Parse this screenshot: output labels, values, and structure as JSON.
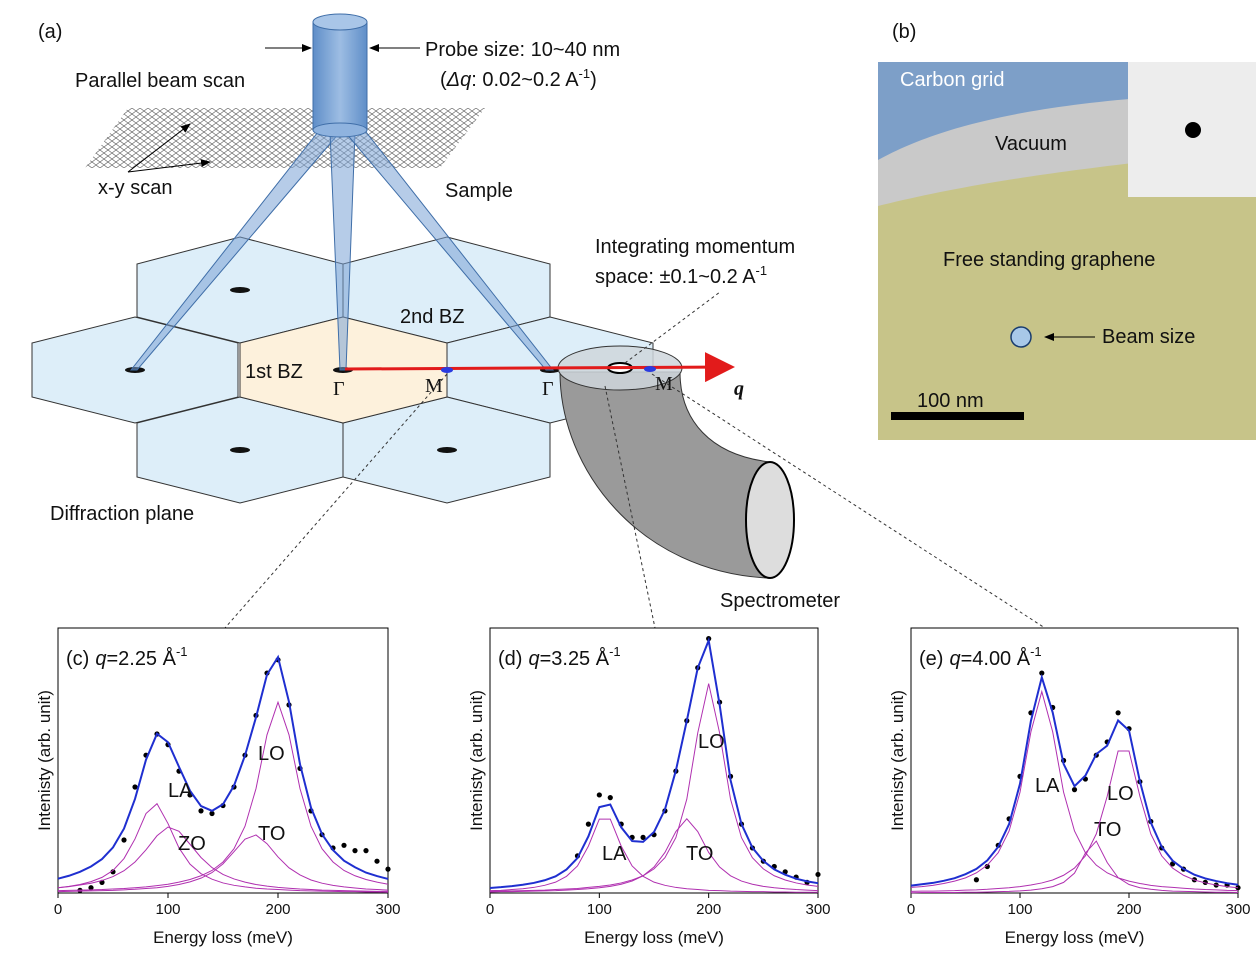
{
  "panel_a": {
    "label": "(a)",
    "probe": "Probe size: 10~40 nm",
    "dq_parts": [
      "(",
      "Δq",
      ": 0.02~0.2 A",
      "-1",
      ")"
    ],
    "parallel_beam_scan": "Parallel beam scan",
    "xy_scan": "x-y scan",
    "sample": "Sample",
    "integrating_line1": "Integrating momentum",
    "integrating_line2": "space: ±0.1~0.2 A",
    "integrating_exp": "-1",
    "second_bz": "2nd BZ",
    "first_bz": "1st BZ",
    "points": [
      "Γ",
      "M",
      "Γ",
      "M"
    ],
    "q": "q",
    "diffraction_plane": "Diffraction plane",
    "spectrometer": "Spectrometer"
  },
  "panel_b": {
    "label": "(b)",
    "carbon_grid": "Carbon grid",
    "vacuum": "Vacuum",
    "graphene": "Free standing graphene",
    "beam_size": "Beam size",
    "scale": "100 nm"
  },
  "chart_data": [
    {
      "type": "line",
      "title": {
        "label": "(c)",
        "symbol": "q",
        "value": "=2.25 Å",
        "exp": "-1"
      },
      "x_label": "Energy loss (meV)",
      "y_label": "Intenisty (arb. unit)",
      "xlim": [
        0,
        300
      ],
      "xticks": [
        0,
        100,
        200,
        300
      ],
      "ylim": [
        0,
        1
      ],
      "x": [
        0,
        10,
        20,
        30,
        40,
        50,
        60,
        70,
        80,
        90,
        100,
        110,
        120,
        130,
        140,
        150,
        160,
        170,
        180,
        190,
        200,
        210,
        220,
        230,
        240,
        250,
        260,
        270,
        280,
        290,
        300
      ],
      "series": [
        {
          "mode": "markers",
          "color": "#000000",
          "values": [
            null,
            null,
            0.01,
            0.02,
            0.04,
            0.08,
            0.2,
            0.4,
            0.52,
            0.6,
            0.56,
            0.46,
            0.37,
            0.31,
            0.3,
            0.33,
            0.4,
            0.52,
            0.67,
            0.83,
            0.88,
            0.71,
            0.47,
            0.31,
            0.22,
            0.17,
            0.18,
            0.16,
            0.16,
            0.12,
            0.09
          ]
        },
        {
          "mode": "line",
          "color": "#1f2fd0",
          "values": [
            0.054,
            0.065,
            0.08,
            0.1,
            0.128,
            0.172,
            0.243,
            0.355,
            0.503,
            0.601,
            0.569,
            0.476,
            0.386,
            0.328,
            0.31,
            0.335,
            0.405,
            0.519,
            0.663,
            0.824,
            0.89,
            0.721,
            0.486,
            0.322,
            0.222,
            0.162,
            0.122,
            0.097,
            0.077,
            0.064,
            0.053
          ]
        },
        {
          "name": "LA",
          "mode": "line",
          "color": "#b030b0",
          "values": [
            0.02,
            0.025,
            0.032,
            0.043,
            0.059,
            0.085,
            0.13,
            0.204,
            0.3,
            0.337,
            0.262,
            0.17,
            0.109,
            0.073,
            0.052,
            0.038,
            0.029,
            0.023,
            0.018,
            0.015,
            0.013,
            0.011,
            0.009,
            0.008,
            0.007,
            0.006,
            0.005,
            0.005,
            0.004,
            0.004,
            0.003
          ]
        },
        {
          "name": "ZO",
          "mode": "line",
          "color": "#b030b0",
          "values": [
            0.02,
            0.024,
            0.03,
            0.037,
            0.047,
            0.062,
            0.084,
            0.117,
            0.163,
            0.216,
            0.249,
            0.233,
            0.184,
            0.134,
            0.096,
            0.07,
            0.053,
            0.041,
            0.032,
            0.026,
            0.021,
            0.018,
            0.015,
            0.013,
            0.011,
            0.01,
            0.009,
            0.008,
            0.007,
            0.006,
            0.006
          ]
        },
        {
          "name": "TO",
          "mode": "line",
          "color": "#b030b0",
          "values": [
            0.005,
            0.006,
            0.007,
            0.008,
            0.009,
            0.01,
            0.012,
            0.014,
            0.017,
            0.02,
            0.025,
            0.032,
            0.042,
            0.056,
            0.077,
            0.11,
            0.156,
            0.203,
            0.219,
            0.186,
            0.136,
            0.095,
            0.068,
            0.049,
            0.037,
            0.029,
            0.023,
            0.019,
            0.015,
            0.013,
            0.011
          ]
        },
        {
          "name": "LO",
          "mode": "line",
          "color": "#b030b0",
          "values": [
            0.009,
            0.01,
            0.011,
            0.012,
            0.013,
            0.015,
            0.017,
            0.02,
            0.023,
            0.028,
            0.033,
            0.041,
            0.051,
            0.065,
            0.085,
            0.117,
            0.167,
            0.252,
            0.394,
            0.597,
            0.72,
            0.597,
            0.394,
            0.252,
            0.167,
            0.117,
            0.085,
            0.065,
            0.051,
            0.041,
            0.033
          ]
        }
      ]
    },
    {
      "type": "line",
      "title": {
        "label": "(d)",
        "symbol": "q",
        "value": "=3.25 Å",
        "exp": "-1"
      },
      "x_label": "Energy loss (meV)",
      "y_label": "Intenisty (arb. unit)",
      "xlim": [
        0,
        300
      ],
      "xticks": [
        0,
        100,
        200,
        300
      ],
      "ylim": [
        0,
        1
      ],
      "x": [
        0,
        10,
        20,
        30,
        40,
        50,
        60,
        70,
        80,
        90,
        100,
        110,
        120,
        130,
        140,
        150,
        160,
        170,
        180,
        190,
        200,
        210,
        220,
        230,
        240,
        250,
        260,
        270,
        280,
        290,
        300
      ],
      "series": [
        {
          "mode": "markers",
          "color": "#000000",
          "values": [
            null,
            null,
            null,
            null,
            null,
            null,
            null,
            null,
            0.14,
            0.26,
            0.37,
            0.36,
            0.26,
            0.21,
            0.21,
            0.22,
            0.31,
            0.46,
            0.65,
            0.85,
            0.96,
            0.72,
            0.44,
            0.26,
            0.17,
            0.12,
            0.1,
            0.08,
            0.06,
            0.04,
            0.07
          ]
        },
        {
          "mode": "line",
          "color": "#1f2fd0",
          "values": [
            0.019,
            0.022,
            0.026,
            0.031,
            0.038,
            0.048,
            0.063,
            0.089,
            0.132,
            0.214,
            0.324,
            0.334,
            0.248,
            0.196,
            0.193,
            0.23,
            0.315,
            0.462,
            0.65,
            0.849,
            0.953,
            0.711,
            0.426,
            0.26,
            0.171,
            0.121,
            0.089,
            0.069,
            0.054,
            0.044,
            0.037
          ]
        },
        {
          "name": "LA",
          "mode": "line",
          "color": "#b030b0",
          "values": [
            0.009,
            0.01,
            0.013,
            0.016,
            0.021,
            0.029,
            0.041,
            0.063,
            0.102,
            0.177,
            0.279,
            0.279,
            0.177,
            0.102,
            0.063,
            0.041,
            0.029,
            0.021,
            0.016,
            0.013,
            0.01,
            0.009,
            0.007,
            0.006,
            0.005,
            0.005,
            0.004,
            0.004,
            0.003,
            0.003,
            0.003
          ]
        },
        {
          "name": "TO",
          "mode": "line",
          "color": "#b030b0",
          "values": [
            0.004,
            0.005,
            0.005,
            0.006,
            0.007,
            0.008,
            0.009,
            0.011,
            0.013,
            0.016,
            0.02,
            0.025,
            0.033,
            0.045,
            0.065,
            0.098,
            0.153,
            0.232,
            0.28,
            0.232,
            0.153,
            0.098,
            0.065,
            0.045,
            0.033,
            0.025,
            0.02,
            0.016,
            0.013,
            0.011,
            0.009
          ]
        },
        {
          "name": "LO",
          "mode": "line",
          "color": "#b030b0",
          "values": [
            0.006,
            0.007,
            0.008,
            0.009,
            0.01,
            0.011,
            0.013,
            0.015,
            0.017,
            0.021,
            0.025,
            0.03,
            0.038,
            0.049,
            0.065,
            0.091,
            0.133,
            0.209,
            0.354,
            0.604,
            0.79,
            0.604,
            0.354,
            0.209,
            0.133,
            0.091,
            0.065,
            0.049,
            0.038,
            0.03,
            0.025
          ]
        }
      ]
    },
    {
      "type": "line",
      "title": {
        "label": "(e)",
        "symbol": "q",
        "value": "=4.00 Å",
        "exp": "-1"
      },
      "x_label": "Energy loss (meV)",
      "y_label": "Intenisty (arb. unit)",
      "xlim": [
        0,
        300
      ],
      "xticks": [
        0,
        100,
        200,
        300
      ],
      "ylim": [
        0,
        1
      ],
      "x": [
        0,
        10,
        20,
        30,
        40,
        50,
        60,
        70,
        80,
        90,
        100,
        110,
        120,
        130,
        140,
        150,
        160,
        170,
        180,
        190,
        200,
        210,
        220,
        230,
        240,
        250,
        260,
        270,
        280,
        290,
        300
      ],
      "series": [
        {
          "mode": "markers",
          "color": "#000000",
          "values": [
            null,
            null,
            null,
            null,
            null,
            null,
            0.05,
            0.1,
            0.18,
            0.28,
            0.44,
            0.68,
            0.83,
            0.7,
            0.5,
            0.39,
            0.43,
            0.52,
            0.57,
            0.68,
            0.62,
            0.42,
            0.27,
            0.17,
            0.11,
            0.09,
            0.05,
            0.04,
            0.03,
            0.03,
            0.02
          ]
        },
        {
          "mode": "line",
          "color": "#1f2fd0",
          "values": [
            0.028,
            0.033,
            0.038,
            0.046,
            0.056,
            0.071,
            0.091,
            0.123,
            0.174,
            0.26,
            0.412,
            0.649,
            0.814,
            0.681,
            0.487,
            0.403,
            0.443,
            0.524,
            0.556,
            0.651,
            0.613,
            0.421,
            0.266,
            0.174,
            0.122,
            0.091,
            0.069,
            0.055,
            0.045,
            0.037,
            0.031
          ]
        },
        {
          "name": "LA",
          "mode": "line",
          "color": "#b030b0",
          "values": [
            0.021,
            0.024,
            0.029,
            0.036,
            0.045,
            0.057,
            0.076,
            0.105,
            0.152,
            0.234,
            0.38,
            0.608,
            0.76,
            0.608,
            0.38,
            0.234,
            0.152,
            0.105,
            0.076,
            0.057,
            0.045,
            0.036,
            0.029,
            0.024,
            0.021,
            0.018,
            0.015,
            0.013,
            0.012,
            0.01,
            0.009
          ]
        },
        {
          "name": "TO",
          "mode": "line",
          "color": "#b030b0",
          "values": [
            0.001,
            0.002,
            0.002,
            0.002,
            0.002,
            0.003,
            0.003,
            0.004,
            0.005,
            0.006,
            0.008,
            0.011,
            0.016,
            0.024,
            0.04,
            0.075,
            0.151,
            0.196,
            0.115,
            0.058,
            0.032,
            0.02,
            0.014,
            0.01,
            0.007,
            0.006,
            0.005,
            0.004,
            0.003,
            0.003,
            0.002
          ]
        },
        {
          "name": "LO",
          "mode": "line",
          "color": "#b030b0",
          "values": [
            0.006,
            0.007,
            0.007,
            0.008,
            0.009,
            0.011,
            0.012,
            0.014,
            0.017,
            0.02,
            0.024,
            0.03,
            0.038,
            0.049,
            0.067,
            0.094,
            0.14,
            0.223,
            0.365,
            0.536,
            0.536,
            0.365,
            0.223,
            0.14,
            0.094,
            0.067,
            0.049,
            0.038,
            0.03,
            0.024,
            0.02
          ]
        }
      ]
    }
  ]
}
